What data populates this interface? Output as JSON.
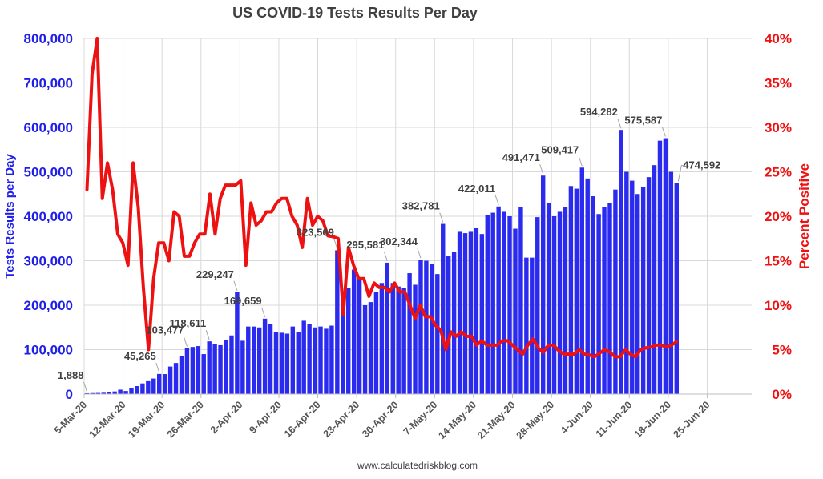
{
  "chart_data": {
    "type": "bar+line",
    "title": "US COVID-19 Tests Results Per Day",
    "ylabel_left": "Tests Results per Day",
    "ylabel_right": "Percent Positive",
    "ylim_left": [
      0,
      800000
    ],
    "ylim_right": [
      0,
      40
    ],
    "y_ticks_left": [
      "0",
      "100,000",
      "200,000",
      "300,000",
      "400,000",
      "500,000",
      "600,000",
      "700,000",
      "800,000"
    ],
    "y_ticks_right": [
      "0%",
      "5%",
      "10%",
      "15%",
      "20%",
      "25%",
      "30%",
      "35%",
      "40%"
    ],
    "x_ticks": [
      "5-Mar-20",
      "12-Mar-20",
      "19-Mar-20",
      "26-Mar-20",
      "2-Apr-20",
      "9-Apr-20",
      "16-Apr-20",
      "23-Apr-20",
      "30-Apr-20",
      "7-May-20",
      "14-May-20",
      "21-May-20",
      "28-May-20",
      "4-Jun-20",
      "11-Jun-20",
      "18-Jun-20",
      "25-Jun-20"
    ],
    "x_days_total": 120,
    "grid": true,
    "series": [
      {
        "name": "Tests Results per Day",
        "type": "bar",
        "axis": "left",
        "color": "#2b2bf0",
        "values": [
          1888,
          2200,
          2500,
          3000,
          4500,
          6000,
          10000,
          7000,
          14000,
          18000,
          24000,
          29000,
          35000,
          45265,
          45000,
          62000,
          70000,
          86000,
          103477,
          106000,
          108000,
          90000,
          118611,
          112000,
          110000,
          122000,
          132000,
          229247,
          120000,
          152000,
          152000,
          150000,
          169659,
          158000,
          140000,
          138000,
          136000,
          152000,
          140000,
          165000,
          158000,
          150000,
          152000,
          147000,
          154000,
          323569,
          195000,
          238000,
          280000,
          260000,
          200000,
          207000,
          230000,
          250000,
          295581,
          250000,
          242000,
          238000,
          272000,
          246000,
          302344,
          300000,
          292000,
          270000,
          382781,
          310000,
          320000,
          365000,
          362000,
          365000,
          373000,
          360000,
          402000,
          408000,
          422011,
          410000,
          400000,
          372000,
          420000,
          307000,
          307000,
          398000,
          491471,
          430000,
          400000,
          410000,
          420000,
          468000,
          462000,
          509417,
          485000,
          445000,
          405000,
          420000,
          430000,
          460000,
          594282,
          500000,
          480000,
          450000,
          465000,
          488000,
          515000,
          570000,
          575587,
          500000,
          474592
        ],
        "labels": [
          {
            "index": 0,
            "text": "1,888"
          },
          {
            "index": 13,
            "text": "45,265"
          },
          {
            "index": 18,
            "text": "103,477"
          },
          {
            "index": 22,
            "text": "118,611"
          },
          {
            "index": 27,
            "text": "229,247"
          },
          {
            "index": 32,
            "text": "169,659"
          },
          {
            "index": 45,
            "text": "323,569"
          },
          {
            "index": 54,
            "text": "295,581"
          },
          {
            "index": 60,
            "text": "302,344"
          },
          {
            "index": 64,
            "text": "382,781"
          },
          {
            "index": 74,
            "text": "422,011"
          },
          {
            "index": 82,
            "text": "491,471"
          },
          {
            "index": 89,
            "text": "509,417"
          },
          {
            "index": 96,
            "text": "594,282"
          },
          {
            "index": 104,
            "text": "575,587"
          },
          {
            "index": 106,
            "text": "474,592"
          }
        ]
      },
      {
        "name": "Percent Positive",
        "type": "line",
        "axis": "right",
        "color": "#ee1111",
        "values": [
          23,
          36,
          40,
          22,
          26,
          23,
          18,
          17,
          14.5,
          26,
          21,
          12,
          5,
          13,
          17,
          17,
          15,
          20.5,
          20,
          15.5,
          15.5,
          17,
          18,
          18,
          22.5,
          18,
          22,
          23.5,
          23.5,
          23.5,
          24,
          14.5,
          21.5,
          19,
          19.5,
          20.5,
          20.5,
          21.5,
          22,
          22,
          20,
          19,
          16.5,
          22,
          19,
          20,
          19.5,
          17.8,
          17.7,
          17.5,
          9,
          16.5,
          14.5,
          13,
          13,
          11,
          12.5,
          12,
          12,
          11.5,
          12.5,
          11.5,
          11.5,
          10,
          8.5,
          10,
          8.7,
          8.7,
          7.7,
          7.2,
          5,
          7,
          6.5,
          7,
          6.5,
          6.5,
          5.5,
          6,
          5.5,
          5.5,
          5.5,
          6,
          6,
          5.5,
          5,
          4.5,
          5.5,
          6.2,
          5.2,
          4.7,
          5.5,
          5.5,
          4.9,
          4.5,
          4.5,
          4.5,
          5,
          4.5,
          4.4,
          4.2,
          4.6,
          5,
          4.7,
          4.2,
          4.2,
          5,
          4.5,
          4.2,
          5,
          5.2,
          5.3,
          5.5,
          5.5,
          5.3,
          5.5,
          5.9
        ]
      }
    ]
  },
  "footer": "www.calculatedriskblog.com"
}
